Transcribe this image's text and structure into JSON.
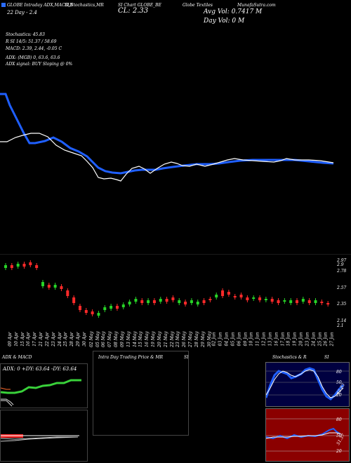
{
  "header": {
    "line1": "GLOBE Intraday ADX,MACD,B",
    "line1b": "SI,Stochastics,MR",
    "line1c": "SI Chart GLOBE_BE",
    "line1d": "Globe Textiles",
    "line1e": "MunafaSutra.com",
    "line2": "22 Day - 2.4",
    "cl": "CL: 2.33",
    "avg_vol": "Avg Vol: 0.7417 M",
    "day_vol": "Day Vol: 0   M"
  },
  "indicators": {
    "stoch": "Stochastics: 45.83",
    "rsi": "R                    SI 14/5: 51.37 / 58.69",
    "macd": "MACD: 2.39, 2.44, -0.05 C",
    "adx": "ADX:                           (MGB) 0, 63.6, 63.6",
    "adx_signal": "ADX  signal:                               BUY Sloping @ 0%"
  },
  "accent": "#2a6cff",
  "price_axis": [
    "2.97",
    "2.9",
    "2.78",
    "2.57",
    "2.35",
    "2.14",
    "2.1"
  ],
  "dates": [
    "09 Apr",
    "10 Apr",
    "15 Apr",
    "16 Apr",
    "17 Apr",
    "21 Apr",
    "22 Apr",
    "23 Apr",
    "24 Apr",
    "25 Apr",
    "28 Apr",
    "29 Apr",
    "30 Apr",
    "02 May",
    "05 May",
    "06 May",
    "07 May",
    "08 May",
    "09 May",
    "13 May",
    "14 May",
    "15 May",
    "16 May",
    "19 May",
    "20 May",
    "21 May",
    "22 May",
    "23 May",
    "26 May",
    "27 May",
    "28 May",
    "29 May",
    "30 May",
    "02 Jun",
    "03 Jun",
    "04 Jun",
    "05 Jun",
    "06 Jun",
    "09 Jun",
    "10 Jun",
    "11 Jun",
    "12 Jun",
    "13 Jun",
    "16 Jun",
    "17 Jun",
    "18 Jun",
    "19 Jun",
    "20 Jun",
    "23 Jun",
    "24 Jun",
    "25 Jun",
    "26 Jun",
    "27 Jun"
  ],
  "panels": {
    "adx": {
      "title": "ADX  & MACD",
      "readout": "ADX: 0  +DY: 63.64  -DY: 63.64"
    },
    "intraday": {
      "title": "Intra  Day Trading Price  & MR",
      "title_b": "SI"
    },
    "stoch": {
      "title": "Stochastics & R",
      "title_b": "SI",
      "axis_top": [
        "80",
        "50",
        "20"
      ],
      "axis_bottom": [
        "80",
        "50",
        "20"
      ],
      "val_top": "45.83",
      "val_bottom": "51.37"
    }
  }
}
